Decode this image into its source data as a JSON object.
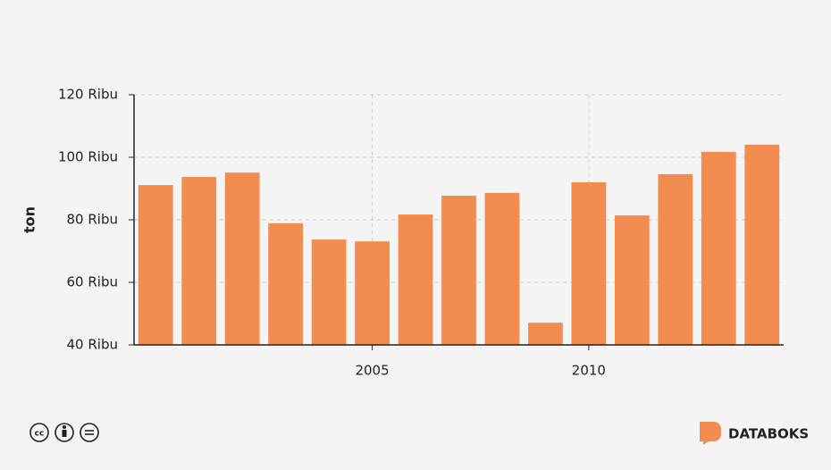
{
  "chart_data": {
    "type": "bar",
    "y_label": "ton",
    "x": [
      2000,
      2001,
      2002,
      2003,
      2004,
      2005,
      2006,
      2007,
      2008,
      2009,
      2010,
      2011,
      2012,
      2013,
      2014
    ],
    "values": [
      91100,
      93700,
      95100,
      78900,
      73700,
      73100,
      81700,
      87700,
      88600,
      47100,
      92000,
      81400,
      94600,
      101700,
      104000
    ],
    "color": "#f38c50",
    "xlim": [
      1999.5,
      2014.5
    ],
    "xticks": [
      2005,
      2010
    ],
    "ylim": [
      40000,
      120000
    ],
    "yticks": [
      {
        "value": 40000,
        "label": "40 Ribu"
      },
      {
        "value": 60000,
        "label": "60 Ribu"
      },
      {
        "value": 80000,
        "label": "80 Ribu"
      },
      {
        "value": 100000,
        "label": "100 Ribu"
      },
      {
        "value": 120000,
        "label": "120 Ribu"
      }
    ],
    "grid": true
  },
  "footer": {
    "brand": "DATABOKS"
  }
}
